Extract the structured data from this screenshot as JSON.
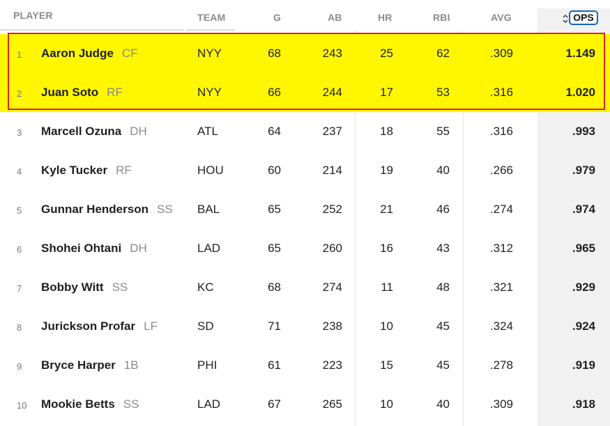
{
  "columns": {
    "player": "PLAYER",
    "team": "TEAM",
    "g": "G",
    "ab": "AB",
    "hr": "HR",
    "rbi": "RBI",
    "avg": "AVG",
    "ops": "OPS"
  },
  "sort_icon": "sort-arrows-icon",
  "highlight_color": "#fff700",
  "highlight_border_color": "#e0202a",
  "rows": [
    {
      "rank": "1",
      "name": "Aaron Judge",
      "pos": "CF",
      "team": "NYY",
      "g": "68",
      "ab": "243",
      "hr": "25",
      "rbi": "62",
      "avg": ".309",
      "ops": "1.149"
    },
    {
      "rank": "2",
      "name": "Juan Soto",
      "pos": "RF",
      "team": "NYY",
      "g": "66",
      "ab": "244",
      "hr": "17",
      "rbi": "53",
      "avg": ".316",
      "ops": "1.020"
    },
    {
      "rank": "3",
      "name": "Marcell Ozuna",
      "pos": "DH",
      "team": "ATL",
      "g": "64",
      "ab": "237",
      "hr": "18",
      "rbi": "55",
      "avg": ".316",
      "ops": ".993"
    },
    {
      "rank": "4",
      "name": "Kyle Tucker",
      "pos": "RF",
      "team": "HOU",
      "g": "60",
      "ab": "214",
      "hr": "19",
      "rbi": "40",
      "avg": ".266",
      "ops": ".979"
    },
    {
      "rank": "5",
      "name": "Gunnar Henderson",
      "pos": "SS",
      "team": "BAL",
      "g": "65",
      "ab": "252",
      "hr": "21",
      "rbi": "46",
      "avg": ".274",
      "ops": ".974"
    },
    {
      "rank": "6",
      "name": "Shohei Ohtani",
      "pos": "DH",
      "team": "LAD",
      "g": "65",
      "ab": "260",
      "hr": "16",
      "rbi": "43",
      "avg": ".312",
      "ops": ".965"
    },
    {
      "rank": "7",
      "name": "Bobby Witt",
      "pos": "SS",
      "team": "KC",
      "g": "68",
      "ab": "274",
      "hr": "11",
      "rbi": "48",
      "avg": ".321",
      "ops": ".929"
    },
    {
      "rank": "8",
      "name": "Jurickson Profar",
      "pos": "LF",
      "team": "SD",
      "g": "71",
      "ab": "238",
      "hr": "10",
      "rbi": "45",
      "avg": ".324",
      "ops": ".924"
    },
    {
      "rank": "9",
      "name": "Bryce Harper",
      "pos": "1B",
      "team": "PHI",
      "g": "61",
      "ab": "223",
      "hr": "15",
      "rbi": "45",
      "avg": ".278",
      "ops": ".919"
    },
    {
      "rank": "10",
      "name": "Mookie Betts",
      "pos": "SS",
      "team": "LAD",
      "g": "67",
      "ab": "265",
      "hr": "10",
      "rbi": "40",
      "avg": ".309",
      "ops": ".918"
    }
  ]
}
